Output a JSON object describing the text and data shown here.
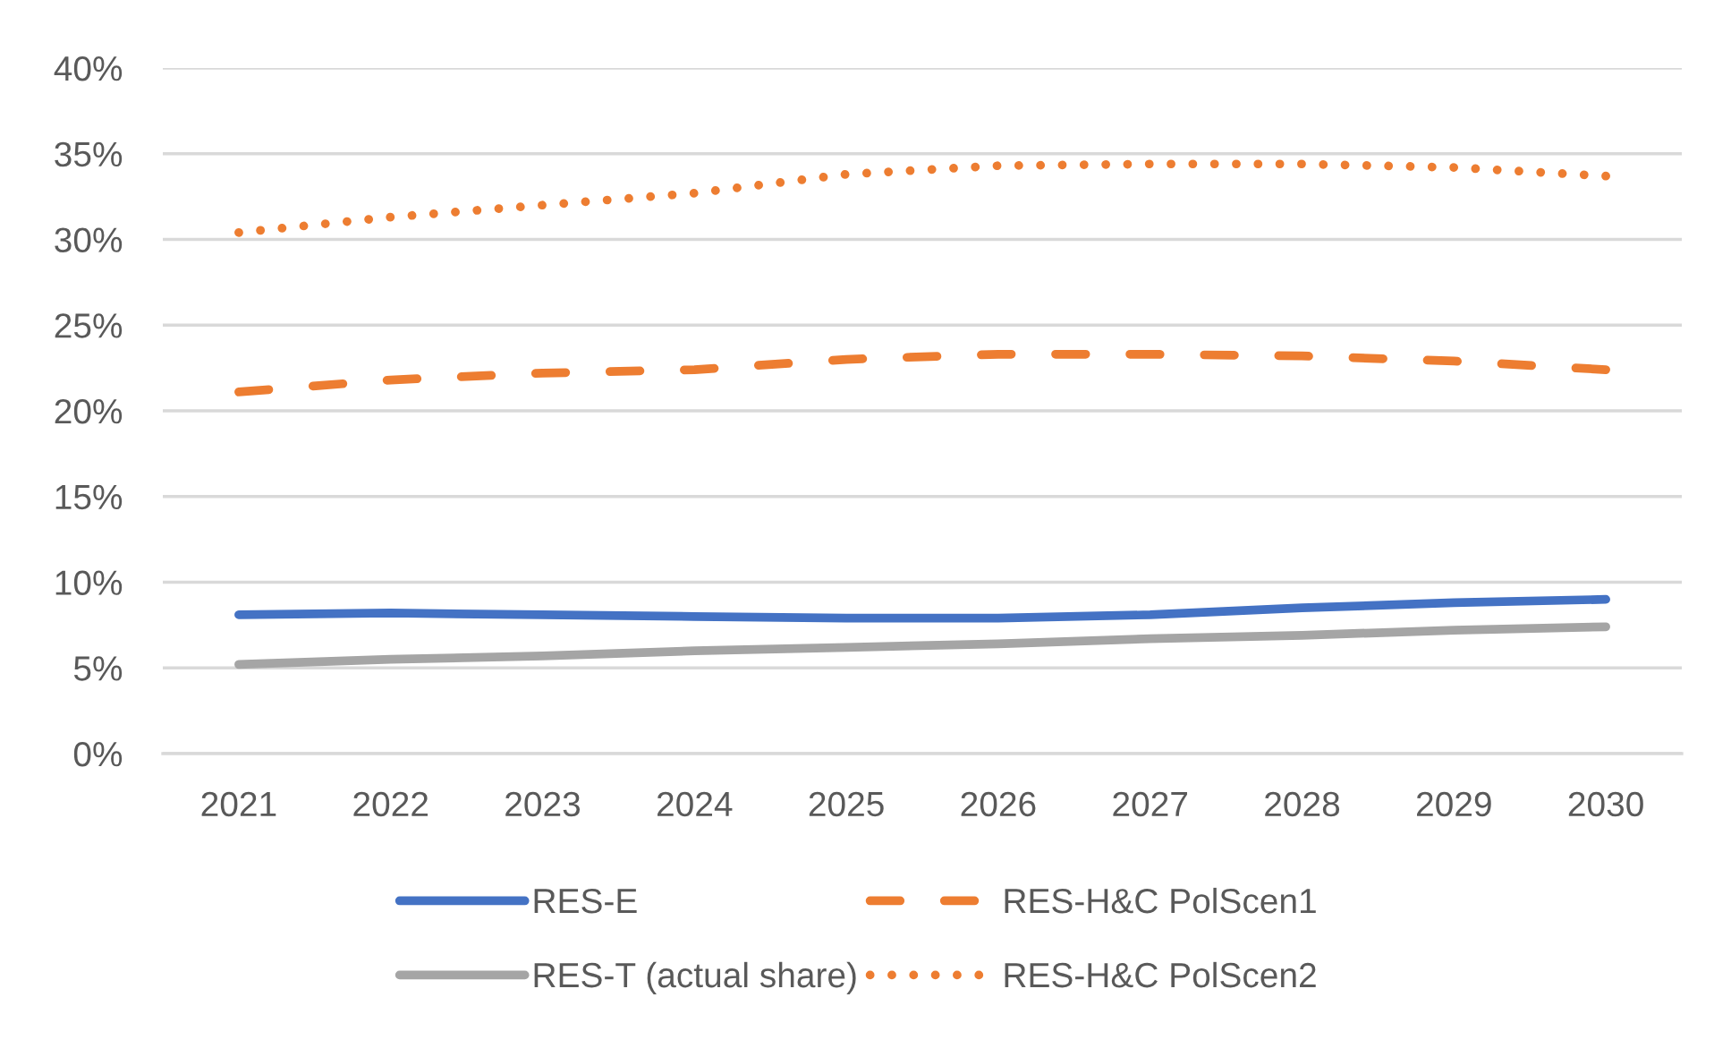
{
  "chart_data": {
    "type": "line",
    "categories": [
      "2021",
      "2022",
      "2023",
      "2024",
      "2025",
      "2026",
      "2027",
      "2028",
      "2029",
      "2030"
    ],
    "series": [
      {
        "name": "RES-E",
        "color": "#4472c4",
        "line_style": "solid",
        "values": [
          8.1,
          8.2,
          8.1,
          8.0,
          7.9,
          7.9,
          8.1,
          8.5,
          8.8,
          9.0
        ]
      },
      {
        "name": "RES-T (actual share)",
        "color": "#a5a5a5",
        "line_style": "solid",
        "values": [
          5.2,
          5.5,
          5.7,
          6.0,
          6.2,
          6.4,
          6.7,
          6.9,
          7.2,
          7.4
        ]
      },
      {
        "name": "RES-H&C PolScen1",
        "color": "#ed7d31",
        "line_style": "dashed",
        "values": [
          21.1,
          21.8,
          22.2,
          22.4,
          23.0,
          23.3,
          23.3,
          23.2,
          22.9,
          22.4
        ]
      },
      {
        "name": "RES-H&C PolScen2",
        "color": "#ed7d31",
        "line_style": "dotted",
        "values": [
          30.4,
          31.3,
          32.0,
          32.7,
          33.8,
          34.3,
          34.4,
          34.4,
          34.2,
          33.7
        ]
      }
    ],
    "ylim": [
      0,
      40
    ],
    "yticks": [
      {
        "value": 0,
        "label": "0%"
      },
      {
        "value": 5,
        "label": "5%"
      },
      {
        "value": 10,
        "label": "10%"
      },
      {
        "value": 15,
        "label": "15%"
      },
      {
        "value": 20,
        "label": "20%"
      },
      {
        "value": 25,
        "label": "25%"
      },
      {
        "value": 30,
        "label": "30%"
      },
      {
        "value": 35,
        "label": "35%"
      },
      {
        "value": 40,
        "label": "40%"
      }
    ],
    "grid": "y",
    "legend": "bottom",
    "marker": "none"
  }
}
